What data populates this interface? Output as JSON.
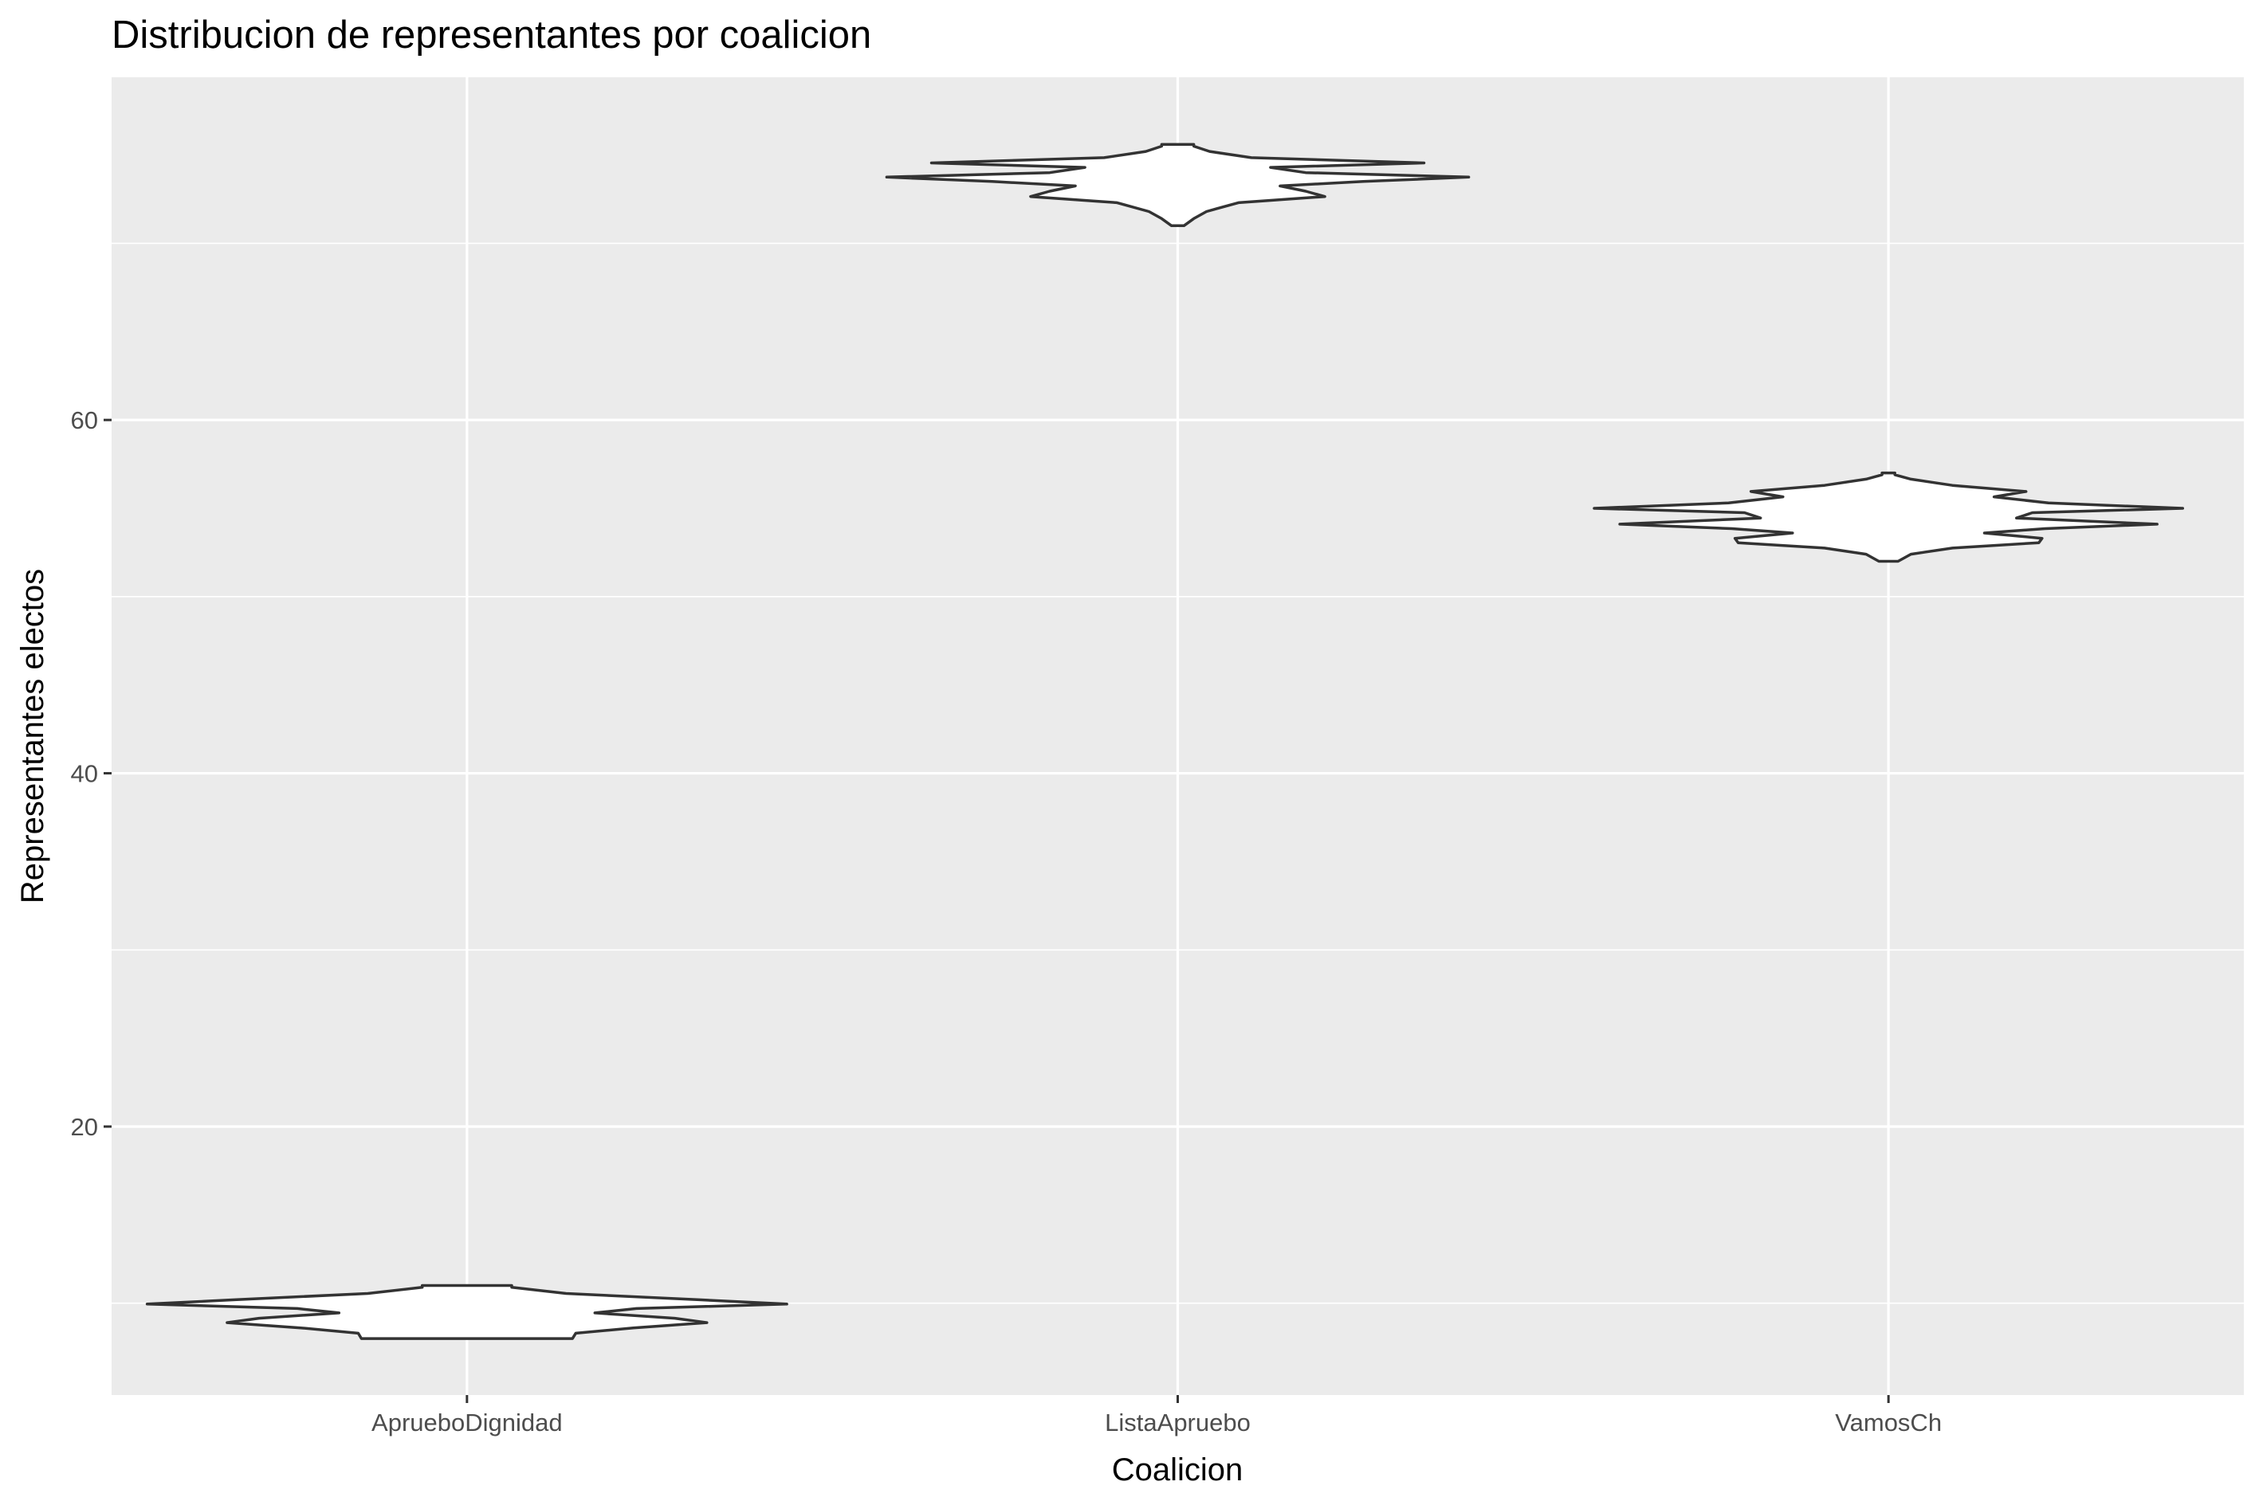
{
  "chart_data": {
    "type": "violin",
    "title": "Distribucion de representantes por coalicion",
    "xlabel": "Coalicion",
    "ylabel": "Representantes electos",
    "categories": [
      "AprueboDignidad",
      "ListaApruebo",
      "VamosCh"
    ],
    "ylim": [
      4.8,
      79.4
    ],
    "yticks": [
      20,
      40,
      60
    ],
    "ytick_labels": [
      "20",
      "40",
      "60"
    ],
    "grid": true,
    "legend": "none",
    "series": [
      {
        "category": "AprueboDignidad",
        "density_profile": [
          {
            "y": 8.0,
            "w": 0.33
          },
          {
            "y": 8.3,
            "w": 0.34
          },
          {
            "y": 8.6,
            "w": 0.52
          },
          {
            "y": 8.9,
            "w": 0.75
          },
          {
            "y": 9.15,
            "w": 0.65
          },
          {
            "y": 9.45,
            "w": 0.4
          },
          {
            "y": 9.7,
            "w": 0.53
          },
          {
            "y": 9.95,
            "w": 1.0
          },
          {
            "y": 10.2,
            "w": 0.72
          },
          {
            "y": 10.55,
            "w": 0.31
          },
          {
            "y": 10.9,
            "w": 0.14
          },
          {
            "y": 11.0,
            "w": 0.14
          }
        ]
      },
      {
        "category": "ListaApruebo",
        "density_profile": [
          {
            "y": 71.0,
            "w": 0.02
          },
          {
            "y": 71.4,
            "w": 0.05
          },
          {
            "y": 71.8,
            "w": 0.09
          },
          {
            "y": 72.3,
            "w": 0.19
          },
          {
            "y": 72.65,
            "w": 0.46
          },
          {
            "y": 72.95,
            "w": 0.4
          },
          {
            "y": 73.25,
            "w": 0.32
          },
          {
            "y": 73.5,
            "w": 0.58
          },
          {
            "y": 73.75,
            "w": 0.91
          },
          {
            "y": 74.0,
            "w": 0.4
          },
          {
            "y": 74.3,
            "w": 0.29
          },
          {
            "y": 74.55,
            "w": 0.77
          },
          {
            "y": 74.85,
            "w": 0.23
          },
          {
            "y": 75.2,
            "w": 0.1
          },
          {
            "y": 75.5,
            "w": 0.05
          },
          {
            "y": 75.6,
            "w": 0.05
          }
        ]
      },
      {
        "category": "VamosCh",
        "density_profile": [
          {
            "y": 52.0,
            "w": 0.03
          },
          {
            "y": 52.4,
            "w": 0.07
          },
          {
            "y": 52.75,
            "w": 0.2
          },
          {
            "y": 53.05,
            "w": 0.47
          },
          {
            "y": 53.3,
            "w": 0.48
          },
          {
            "y": 53.6,
            "w": 0.3
          },
          {
            "y": 53.85,
            "w": 0.49
          },
          {
            "y": 54.1,
            "w": 0.84
          },
          {
            "y": 54.45,
            "w": 0.4
          },
          {
            "y": 54.75,
            "w": 0.45
          },
          {
            "y": 55.0,
            "w": 0.92
          },
          {
            "y": 55.3,
            "w": 0.5
          },
          {
            "y": 55.65,
            "w": 0.33
          },
          {
            "y": 55.95,
            "w": 0.43
          },
          {
            "y": 56.3,
            "w": 0.2
          },
          {
            "y": 56.65,
            "w": 0.07
          },
          {
            "y": 56.9,
            "w": 0.02
          },
          {
            "y": 57.0,
            "w": 0.02
          }
        ]
      }
    ]
  },
  "colors": {
    "panel_background": "#ebebeb",
    "gridline": "#ffffff",
    "violin_fill": "#ffffff",
    "violin_outline": "#333333",
    "tick_mark": "#333333"
  }
}
